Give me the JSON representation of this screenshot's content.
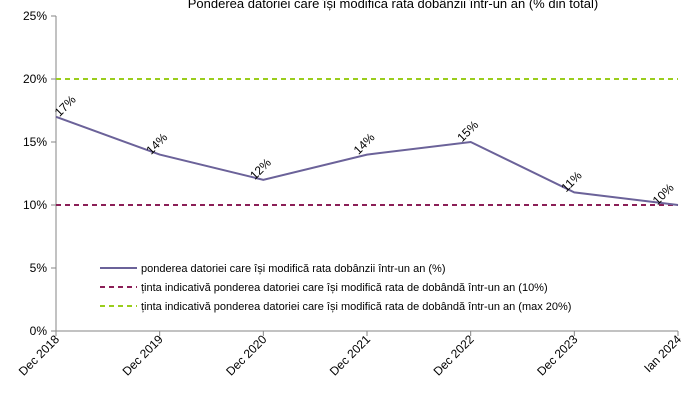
{
  "chart_data": {
    "type": "line",
    "title": "Ponderea datoriei care își modifică rata dobânzii într-un an (% din total)",
    "categories": [
      "Dec 2018",
      "Dec 2019",
      "Dec 2020",
      "Dec 2021",
      "Dec 2022",
      "Dec 2023",
      "Ian 2024"
    ],
    "ylim": [
      0,
      25
    ],
    "yticks": [
      0,
      5,
      10,
      15,
      20,
      25
    ],
    "ytick_suffix": "%",
    "grid": false,
    "legend_position": "lower-left",
    "series": [
      {
        "name": "ponderea datoriei care își modifică rata dobânzii într-un an (%)",
        "values": [
          17,
          14,
          12,
          14,
          15,
          11,
          10
        ],
        "data_labels": [
          "17%",
          "14%",
          "12%",
          "14%",
          "15%",
          "11%",
          "10%"
        ],
        "color": "#6b6299",
        "style": "solid"
      },
      {
        "name": "ținta indicativă ponderea datoriei  care își modifică rata de dobândă într-un an (10%)",
        "values": [
          10,
          10,
          10,
          10,
          10,
          10,
          10
        ],
        "color": "#8b1f57",
        "style": "dashed"
      },
      {
        "name": "ținta indicativă ponderea datoriei care își modifică rata de dobândă într-un an (max 20%)",
        "values": [
          20,
          20,
          20,
          20,
          20,
          20,
          20
        ],
        "color": "#9acd1c",
        "style": "dashed"
      }
    ]
  }
}
